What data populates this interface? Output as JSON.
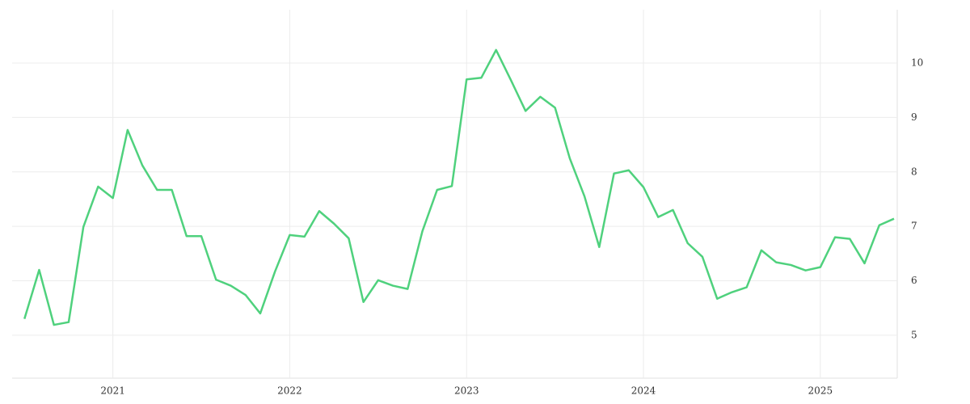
{
  "chart_data": {
    "type": "line",
    "x": [
      "2020-07",
      "2020-08",
      "2020-09",
      "2020-10",
      "2020-11",
      "2020-12",
      "2021-01",
      "2021-02",
      "2021-03",
      "2021-04",
      "2021-05",
      "2021-06",
      "2021-07",
      "2021-08",
      "2021-09",
      "2021-10",
      "2021-11",
      "2021-12",
      "2022-01",
      "2022-02",
      "2022-03",
      "2022-04",
      "2022-05",
      "2022-06",
      "2022-07",
      "2022-08",
      "2022-09",
      "2022-10",
      "2022-11",
      "2022-12",
      "2023-01",
      "2023-02",
      "2023-03",
      "2023-04",
      "2023-05",
      "2023-06",
      "2023-07",
      "2023-08",
      "2023-09",
      "2023-10",
      "2023-11",
      "2023-12",
      "2024-01",
      "2024-02",
      "2024-03",
      "2024-04",
      "2024-05",
      "2024-06",
      "2024-07",
      "2024-08",
      "2024-09",
      "2024-10",
      "2024-11",
      "2024-12",
      "2025-01",
      "2025-02",
      "2025-03",
      "2025-04",
      "2025-05",
      "2025-06"
    ],
    "series": [
      {
        "color": "#4fd17d",
        "values": [
          5.3,
          6.2,
          5.19,
          5.24,
          6.99,
          7.73,
          7.52,
          8.77,
          8.12,
          7.67,
          7.67,
          6.82,
          6.82,
          6.02,
          5.91,
          5.74,
          5.4,
          6.17,
          6.84,
          6.81,
          7.28,
          7.05,
          6.78,
          5.61,
          6.01,
          5.91,
          5.85,
          6.91,
          7.67,
          7.74,
          9.7,
          9.73,
          10.24,
          9.69,
          9.12,
          9.38,
          9.18,
          8.25,
          7.55,
          6.62,
          7.97,
          8.03,
          7.72,
          7.17,
          7.3,
          6.69,
          6.44,
          5.67,
          5.79,
          5.88,
          6.56,
          6.34,
          6.29,
          6.19,
          6.25,
          6.8,
          6.77,
          6.32,
          7.02,
          7.14
        ]
      }
    ],
    "xlim": [
      "2020-06",
      "2025-06"
    ],
    "xticks": [
      {
        "value": "2021-01",
        "label": "2021"
      },
      {
        "value": "2022-01",
        "label": "2022"
      },
      {
        "value": "2023-01",
        "label": "2023"
      },
      {
        "value": "2024-01",
        "label": "2024"
      },
      {
        "value": "2025-01",
        "label": "2025"
      }
    ],
    "ylim": [
      4.33,
      10.98
    ],
    "yticks": [
      5,
      6,
      7,
      8,
      9,
      10
    ],
    "grid": true
  }
}
